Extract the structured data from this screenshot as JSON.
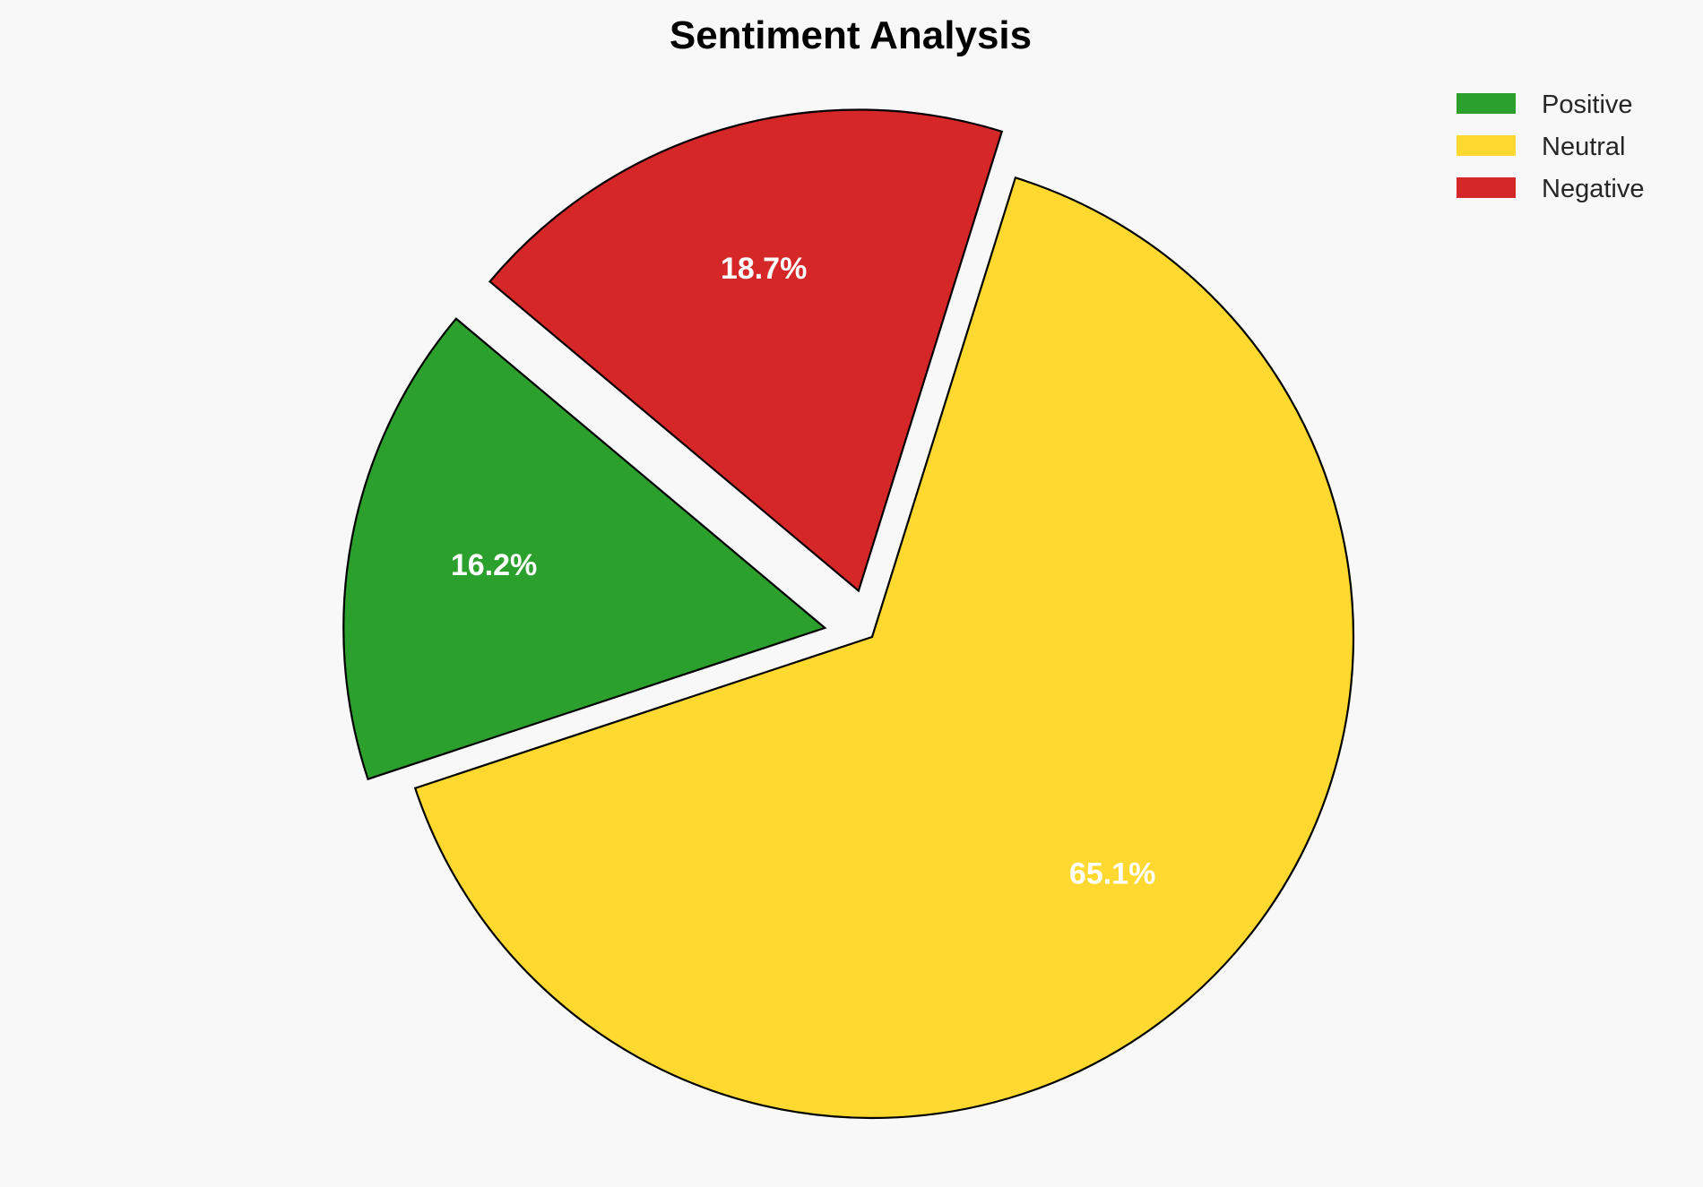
{
  "chart_data": {
    "type": "pie",
    "title": "Sentiment Analysis",
    "categories": [
      "Positive",
      "Neutral",
      "Negative"
    ],
    "values": [
      16.2,
      65.1,
      18.7
    ],
    "labels": [
      "16.2%",
      "65.1%",
      "18.7%"
    ],
    "colors": [
      "#2ca02c",
      "#ffd92f",
      "#d62728"
    ],
    "explode": [
      0.1,
      0,
      0.1
    ],
    "start_angle": 140,
    "direction": "counterclockwise",
    "legend_position": "top-right",
    "edge_color": "#000000"
  }
}
